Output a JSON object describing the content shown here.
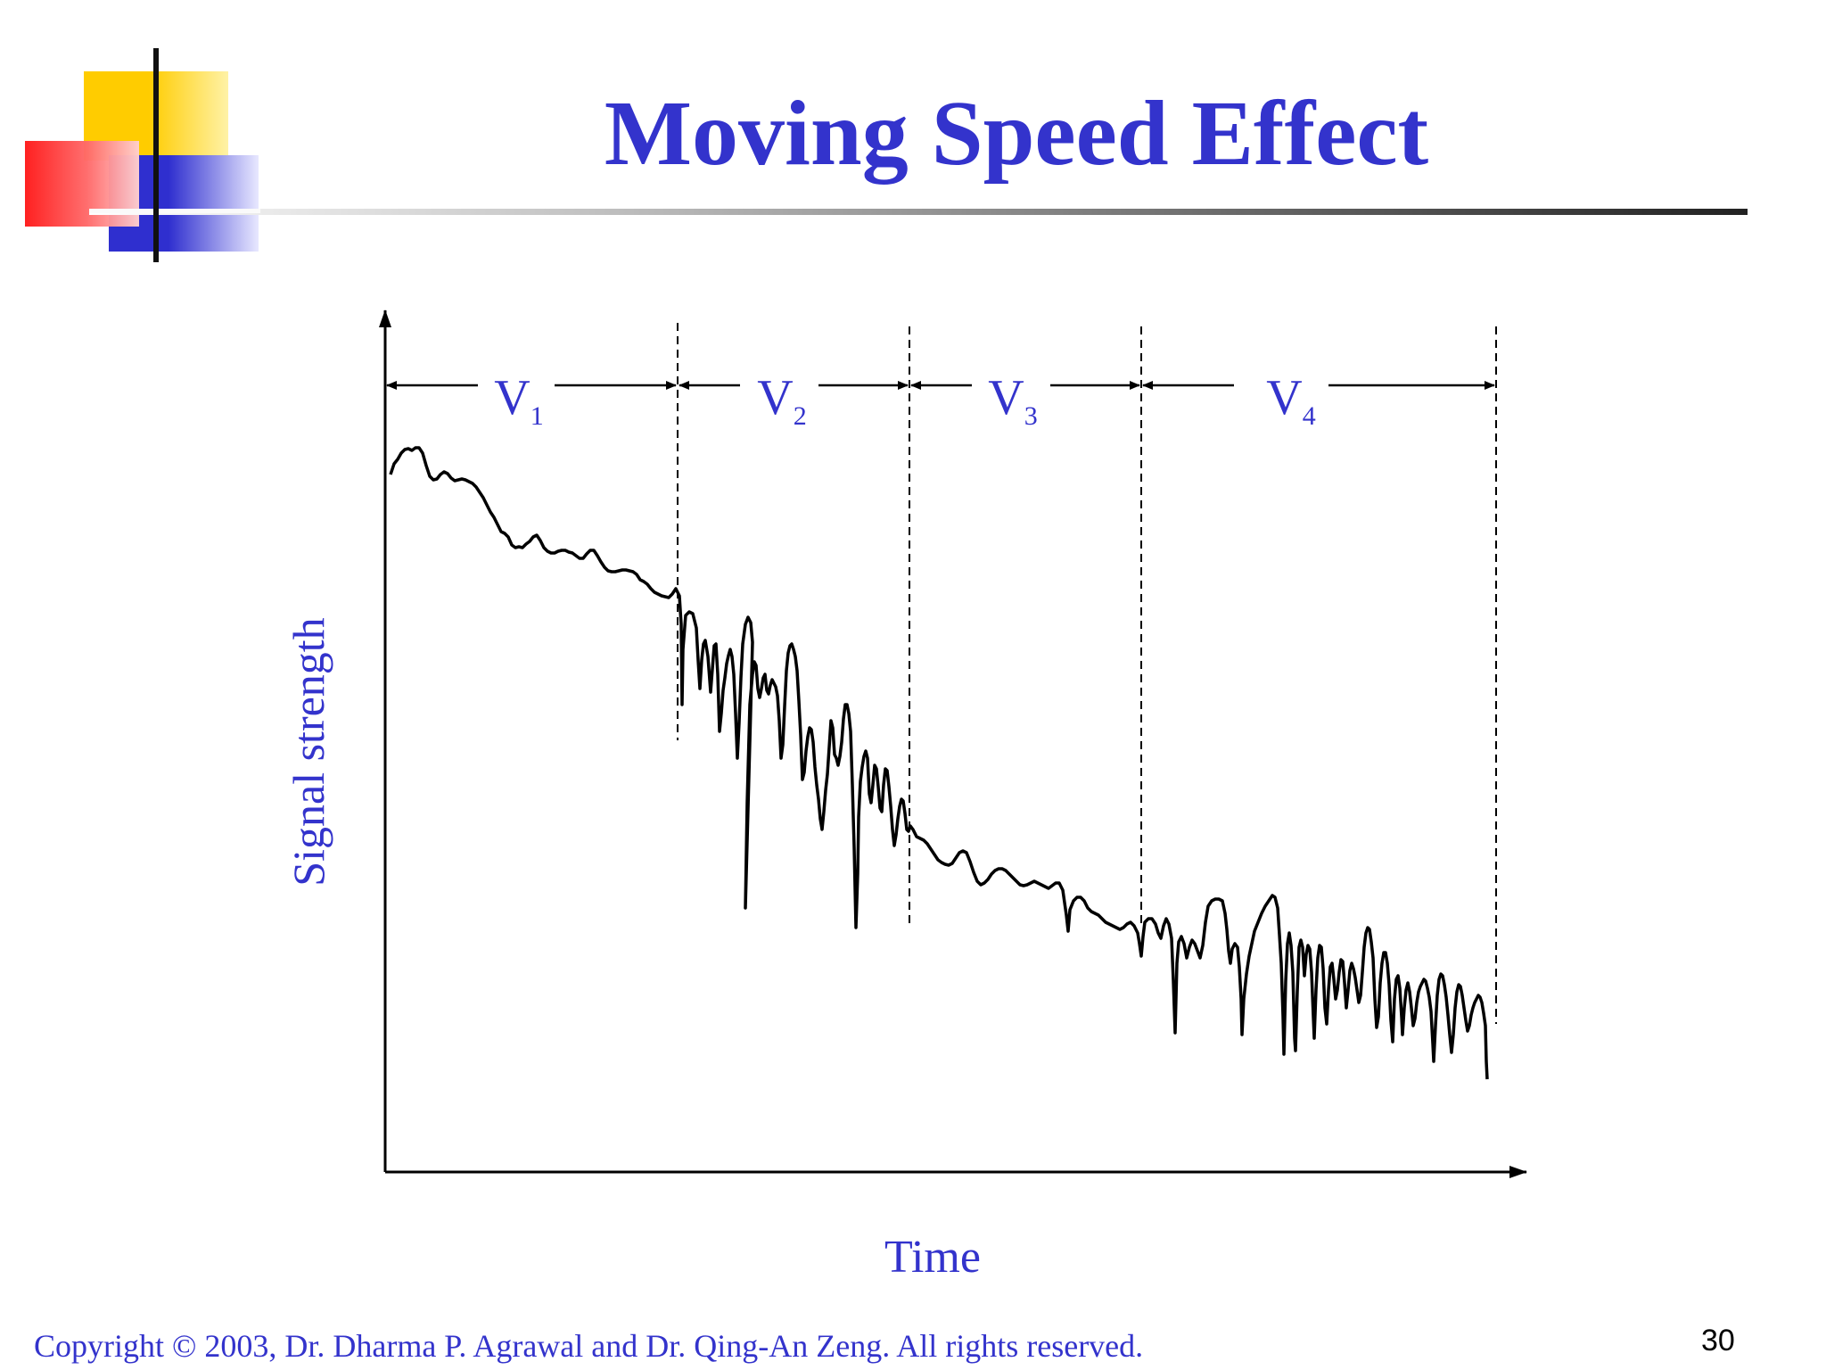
{
  "slide": {
    "title": "Moving Speed Effect",
    "footer": "Copyright © 2003, Dr. Dharma P. Agrawal and Dr. Qing-An Zeng. All rights reserved.",
    "page_number": "30"
  },
  "diagram": {
    "y_axis_label": "Signal strength",
    "x_axis_label": "Time",
    "segments": [
      {
        "letter": "V",
        "subscript": "1"
      },
      {
        "letter": "V",
        "subscript": "2"
      },
      {
        "letter": "V",
        "subscript": "3"
      },
      {
        "letter": "V",
        "subscript": "4"
      }
    ]
  },
  "colors": {
    "title": "#3333cc",
    "text": "#3333cc",
    "signal": "#000000"
  }
}
